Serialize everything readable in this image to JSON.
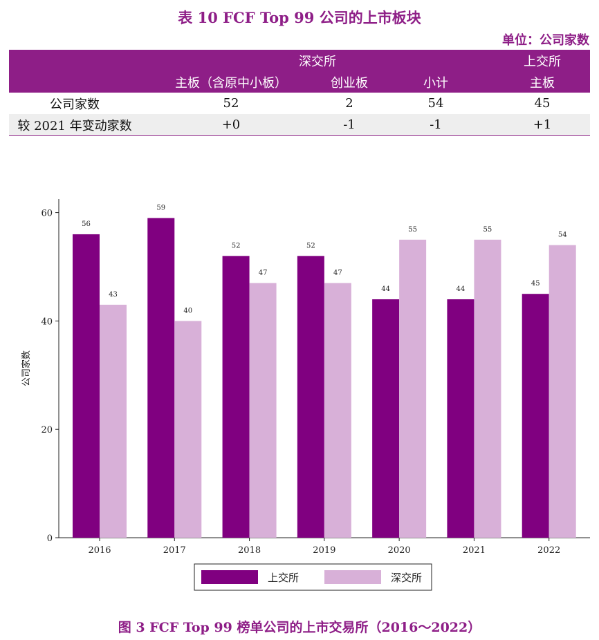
{
  "table": {
    "title": "表 10 FCF Top 99 公司的上市板块",
    "unit": "单位：公司家数",
    "header": {
      "szse": "深交所",
      "sse": "上交所",
      "main_board": "主板（含原中小板）",
      "chinext": "创业板",
      "subtotal": "小计",
      "sse_main": "主板"
    },
    "rows": [
      {
        "label": "公司家数",
        "values": [
          "52",
          "2",
          "54",
          "45"
        ]
      },
      {
        "label": "较 2021 年变动家数",
        "values": [
          "+0",
          "-1",
          "-1",
          "+1"
        ]
      }
    ]
  },
  "chart_data": {
    "type": "bar",
    "ylabel": "公司家数",
    "ylim": [
      0,
      60
    ],
    "yticks": [
      0,
      20,
      40,
      60
    ],
    "categories": [
      "2016",
      "2017",
      "2018",
      "2019",
      "2020",
      "2021",
      "2022"
    ],
    "series": [
      {
        "name": "上交所",
        "values": [
          56,
          59,
          52,
          52,
          44,
          44,
          45
        ],
        "color": "#800080"
      },
      {
        "name": "深交所",
        "values": [
          43,
          40,
          47,
          47,
          55,
          55,
          54
        ],
        "color": "#d8b0d8"
      }
    ],
    "legend": "bottom"
  },
  "figure": {
    "caption": "图 3 FCF Top 99 榜单公司的上市交易所（2016～2022）"
  },
  "colors": {
    "accent": "#8e1e87"
  }
}
